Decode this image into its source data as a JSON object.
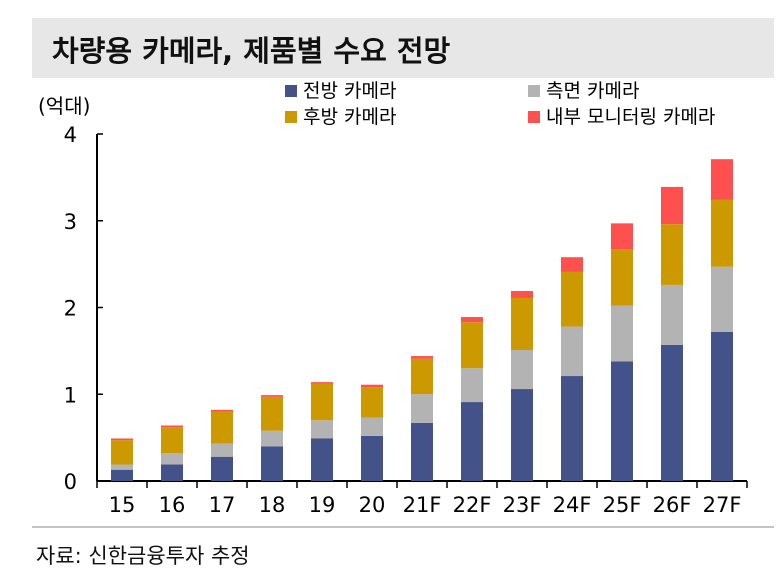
{
  "chart_data": {
    "type": "bar",
    "stacked": true,
    "title": "차량용 카메라, 제품별 수요 전망",
    "ylabel": "(억대)",
    "xlabel": "",
    "ylim": [
      0,
      4
    ],
    "yticks": [
      "0",
      "1",
      "2",
      "3",
      "4"
    ],
    "grid": false,
    "legend_position": "top",
    "categories": [
      "15",
      "16",
      "17",
      "18",
      "19",
      "20",
      "21F",
      "22F",
      "23F",
      "24F",
      "25F",
      "26F",
      "27F"
    ],
    "series": [
      {
        "name": "전방 카메라",
        "color": "#44528a",
        "values": [
          0.13,
          0.19,
          0.28,
          0.4,
          0.49,
          0.52,
          0.67,
          0.91,
          1.06,
          1.21,
          1.38,
          1.57,
          1.72
        ]
      },
      {
        "name": "측면 카메라",
        "color": "#b3b3b3",
        "values": [
          0.06,
          0.13,
          0.15,
          0.18,
          0.21,
          0.21,
          0.33,
          0.39,
          0.45,
          0.57,
          0.64,
          0.69,
          0.75
        ]
      },
      {
        "name": "후방 카메라",
        "color": "#cc9a00",
        "values": [
          0.28,
          0.3,
          0.37,
          0.39,
          0.42,
          0.35,
          0.41,
          0.53,
          0.6,
          0.63,
          0.65,
          0.7,
          0.77
        ]
      },
      {
        "name": "내부 모니터링 카메라",
        "color": "#ff5050",
        "values": [
          0.02,
          0.02,
          0.02,
          0.02,
          0.02,
          0.03,
          0.03,
          0.06,
          0.08,
          0.17,
          0.3,
          0.43,
          0.47
        ]
      }
    ],
    "source": "자료: 신한금융투자 추정"
  }
}
